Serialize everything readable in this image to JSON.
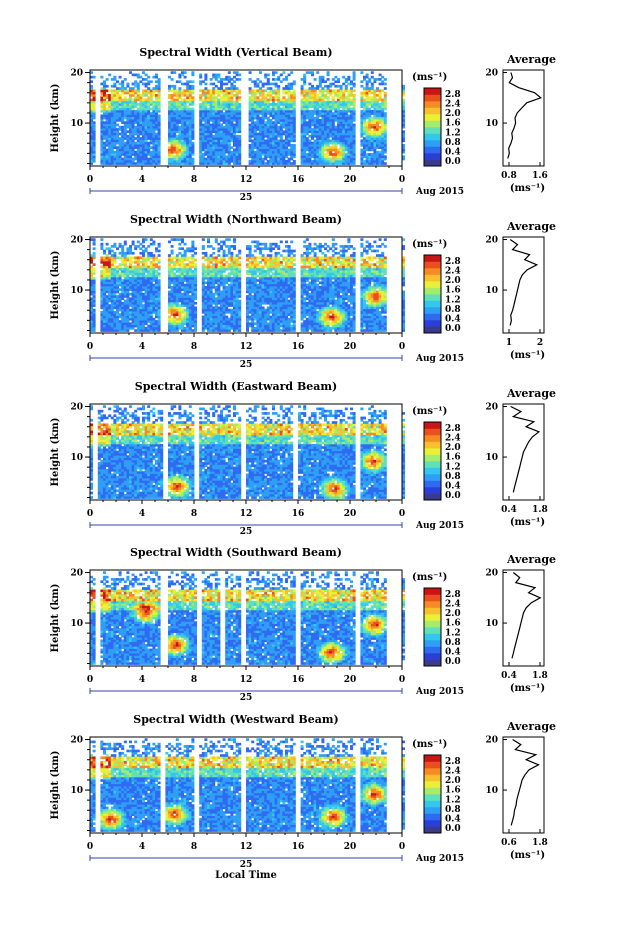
{
  "units_label": "(ms⁻¹)",
  "date_label": "Aug 2015",
  "day_label": "25",
  "xlabel": "Local Time",
  "ylabel": "Height (km)",
  "avg_title": "Average",
  "colorbar_ticks": [
    "2.8",
    "2.4",
    "2.0",
    "1.6",
    "1.2",
    "0.8",
    "0.4",
    "0.0"
  ],
  "colorscale": [
    "#3a3a8c",
    "#2b3fd6",
    "#2f6bf2",
    "#2f9ff5",
    "#33c6ee",
    "#5fe0b8",
    "#a6ec6a",
    "#e8f03a",
    "#f7c02c",
    "#f58b25",
    "#e9501e",
    "#c81616"
  ],
  "chart_data": [
    {
      "type": "heatmap",
      "title": "Spectral Width (Vertical Beam)",
      "x_ticks": [
        "0",
        "4",
        "8",
        "12",
        "16",
        "20",
        "0"
      ],
      "y_ticks": [
        "20",
        "10"
      ],
      "xlim": [
        0,
        24
      ],
      "ylim": [
        1.5,
        20.5
      ],
      "gaps": [
        [
          0.4,
          0.9
        ],
        [
          5.4,
          6.0
        ],
        [
          8.1,
          8.5
        ],
        [
          11.6,
          12.1
        ],
        [
          15.8,
          16.2
        ],
        [
          20.4,
          20.8
        ],
        [
          22.7,
          24
        ]
      ],
      "hot_spots": [
        [
          6.3,
          4.5
        ],
        [
          18.6,
          4.0
        ],
        [
          21.8,
          9.0
        ]
      ],
      "avg": {
        "x_ticks": [
          "0.8",
          "1.6"
        ],
        "xlim": [
          0.6,
          1.9
        ],
        "heights": [
          3,
          4,
          5,
          6,
          7,
          8,
          9,
          10,
          11,
          12,
          13,
          14,
          15,
          16,
          17,
          18,
          19,
          20
        ],
        "values": [
          0.75,
          0.8,
          0.78,
          0.85,
          0.9,
          0.88,
          0.95,
          1.0,
          0.98,
          1.05,
          1.2,
          1.35,
          1.8,
          1.6,
          1.1,
          0.8,
          0.9,
          0.85
        ]
      }
    },
    {
      "type": "heatmap",
      "title": "Spectral Width (Northward Beam)",
      "x_ticks": [
        "0",
        "4",
        "8",
        "12",
        "16",
        "20",
        "0"
      ],
      "y_ticks": [
        "20",
        "10"
      ],
      "xlim": [
        0,
        24
      ],
      "ylim": [
        1.5,
        20.5
      ],
      "gaps": [
        [
          0.5,
          0.8
        ],
        [
          5.5,
          6.0
        ],
        [
          8.2,
          8.6
        ],
        [
          11.5,
          11.9
        ],
        [
          15.7,
          16.1
        ],
        [
          20.3,
          20.7
        ],
        [
          22.7,
          24
        ]
      ],
      "hot_spots": [
        [
          6.4,
          5.0
        ],
        [
          18.5,
          4.5
        ],
        [
          21.9,
          8.5
        ]
      ],
      "avg": {
        "x_ticks": [
          "1",
          "2"
        ],
        "xlim": [
          0.5,
          2.2
        ],
        "heights": [
          3,
          4,
          5,
          6,
          7,
          8,
          9,
          10,
          11,
          12,
          13,
          14,
          15,
          16,
          17,
          18,
          19,
          20
        ],
        "values": [
          0.8,
          0.85,
          0.82,
          0.9,
          0.95,
          1.0,
          1.05,
          1.1,
          1.15,
          1.2,
          1.3,
          1.5,
          1.9,
          1.4,
          1.6,
          0.9,
          1.1,
          0.8
        ]
      }
    },
    {
      "type": "heatmap",
      "title": "Spectral Width (Eastward Beam)",
      "x_ticks": [
        "0",
        "4",
        "8",
        "12",
        "16",
        "20",
        "0"
      ],
      "y_ticks": [
        "20",
        "10"
      ],
      "xlim": [
        0,
        24
      ],
      "ylim": [
        1.5,
        20.5
      ],
      "gaps": [
        [
          0.3,
          0.7
        ],
        [
          5.6,
          6.0
        ],
        [
          8.0,
          8.4
        ],
        [
          11.6,
          12.0
        ],
        [
          15.6,
          16.0
        ],
        [
          20.4,
          20.8
        ],
        [
          22.7,
          24
        ]
      ],
      "hot_spots": [
        [
          6.6,
          4.0
        ],
        [
          18.7,
          3.5
        ],
        [
          21.7,
          9.0
        ]
      ],
      "avg": {
        "x_ticks": [
          "0.4",
          "1.8"
        ],
        "xlim": [
          0.3,
          1.9
        ],
        "heights": [
          3,
          4,
          5,
          6,
          7,
          8,
          9,
          10,
          11,
          12,
          13,
          14,
          15,
          16,
          17,
          18,
          19,
          20
        ],
        "values": [
          0.7,
          0.75,
          0.8,
          0.85,
          0.9,
          0.95,
          1.0,
          1.05,
          1.1,
          1.2,
          1.3,
          1.45,
          1.7,
          1.2,
          1.5,
          0.7,
          1.0,
          0.6
        ]
      }
    },
    {
      "type": "heatmap",
      "title": "Spectral Width (Southward Beam)",
      "x_ticks": [
        "0",
        "4",
        "8",
        "12",
        "16",
        "20",
        "0"
      ],
      "y_ticks": [
        "20",
        "10"
      ],
      "xlim": [
        0,
        24
      ],
      "ylim": [
        1.5,
        20.5
      ],
      "gaps": [
        [
          0.5,
          0.9
        ],
        [
          5.5,
          6.0
        ],
        [
          8.2,
          8.6
        ],
        [
          10.0,
          10.3
        ],
        [
          11.5,
          11.9
        ],
        [
          15.8,
          16.2
        ],
        [
          20.3,
          20.7
        ],
        [
          22.7,
          24
        ]
      ],
      "hot_spots": [
        [
          6.5,
          5.5
        ],
        [
          18.5,
          4.0
        ],
        [
          21.8,
          9.5
        ],
        [
          4.2,
          12.0
        ]
      ],
      "avg": {
        "x_ticks": [
          "0.4",
          "1.8"
        ],
        "xlim": [
          0.3,
          1.9
        ],
        "heights": [
          3,
          4,
          5,
          6,
          7,
          8,
          9,
          10,
          11,
          12,
          13,
          14,
          15,
          16,
          17,
          18,
          19,
          20
        ],
        "values": [
          0.65,
          0.7,
          0.75,
          0.8,
          0.85,
          0.9,
          0.95,
          1.0,
          1.05,
          1.1,
          1.2,
          1.4,
          1.75,
          1.3,
          1.55,
          0.8,
          0.95,
          0.7
        ]
      }
    },
    {
      "type": "heatmap",
      "title": "Spectral Width (Westward Beam)",
      "x_ticks": [
        "0",
        "4",
        "8",
        "12",
        "16",
        "20",
        "0"
      ],
      "y_ticks": [
        "20",
        "10"
      ],
      "xlim": [
        0,
        24
      ],
      "ylim": [
        1.5,
        20.5
      ],
      "gaps": [
        [
          0.4,
          0.8
        ],
        [
          5.4,
          5.9
        ],
        [
          8.1,
          8.5
        ],
        [
          11.6,
          12.0
        ],
        [
          15.7,
          16.1
        ],
        [
          20.4,
          20.8
        ],
        [
          22.7,
          24
        ]
      ],
      "hot_spots": [
        [
          6.4,
          5.0
        ],
        [
          18.6,
          4.5
        ],
        [
          21.8,
          9.0
        ],
        [
          1.5,
          4.0
        ]
      ],
      "avg": {
        "x_ticks": [
          "0.6",
          "1.8"
        ],
        "xlim": [
          0.4,
          1.9
        ],
        "heights": [
          3,
          4,
          5,
          6,
          7,
          8,
          9,
          10,
          11,
          12,
          13,
          14,
          15,
          16,
          17,
          18,
          19,
          20
        ],
        "values": [
          0.7,
          0.75,
          0.8,
          0.82,
          0.88,
          0.9,
          0.95,
          1.0,
          1.05,
          1.1,
          1.2,
          1.35,
          1.7,
          1.25,
          1.6,
          0.85,
          1.05,
          0.75
        ]
      }
    }
  ]
}
